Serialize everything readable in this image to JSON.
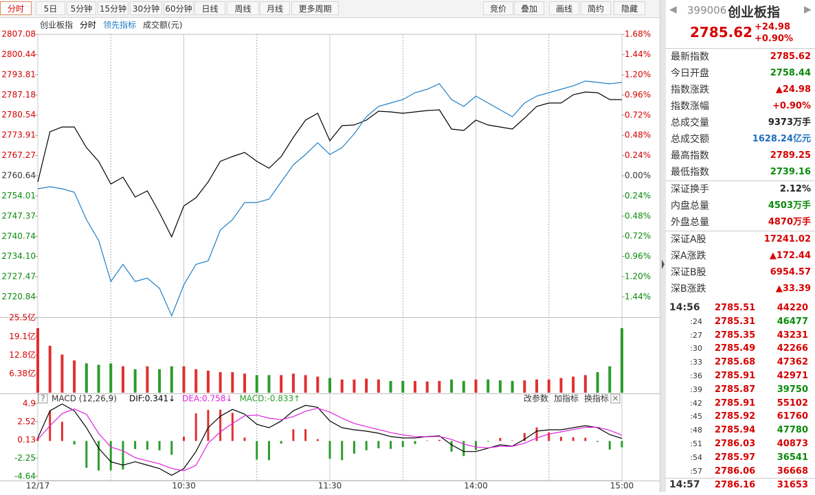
{
  "toolbar": {
    "periods": [
      "分时",
      "5日",
      "5分钟",
      "15分钟",
      "30分钟",
      "60分钟",
      "日线",
      "周线",
      "月线",
      "更多周期"
    ],
    "tools": [
      "竞价",
      "叠加",
      "画线",
      "简约",
      "隐藏"
    ]
  },
  "chart_data": [
    {
      "type": "line",
      "title": "创业板指",
      "x": [
        0,
        5,
        10,
        15,
        20,
        25,
        30,
        35,
        40,
        45,
        50,
        55,
        60,
        65,
        70,
        75,
        80,
        85,
        90,
        95,
        100,
        105,
        110,
        115,
        120,
        125,
        130,
        135,
        140,
        145,
        150,
        155,
        160,
        165,
        170,
        175,
        180,
        185,
        190,
        195,
        200,
        205,
        210,
        215,
        220,
        225,
        230,
        235,
        240
      ],
      "xlim": [
        0,
        240
      ],
      "xticks": [
        {
          "value": 0,
          "label": "12/17"
        },
        {
          "value": 60,
          "label": "10:30"
        },
        {
          "value": 120,
          "label": "11:30"
        },
        {
          "value": 180,
          "label": "14:00"
        },
        {
          "value": 240,
          "label": "15:00"
        }
      ],
      "ylim": [
        2714.2,
        2807.08
      ],
      "yticks": [
        2807.08,
        2800.44,
        2793.81,
        2787.18,
        2780.54,
        2773.91,
        2767.27,
        2760.64,
        2754.01,
        2747.37,
        2740.74,
        {
          "value": 2734.1,
          "label": "2734.10"
        },
        2727.47,
        2720.84
      ],
      "y2lim": [
        -1.682,
        1.682
      ],
      "y2ticks": [
        {
          "value": 1.68,
          "label": "1.68%"
        },
        {
          "value": 1.44,
          "label": "1.44%"
        },
        {
          "value": 1.2,
          "label": "1.20%"
        },
        {
          "value": 0.96,
          "label": "0.96%"
        },
        {
          "value": 0.72,
          "label": "0.72%"
        },
        {
          "value": 0.48,
          "label": "0.48%"
        },
        {
          "value": 0.24,
          "label": "0.24%"
        },
        {
          "value": 0,
          "label": "0.00%"
        },
        {
          "value": -0.24,
          "label": "0.24%"
        },
        {
          "value": -0.48,
          "label": "0.48%"
        },
        {
          "value": -0.72,
          "label": "0.72%"
        },
        {
          "value": -0.96,
          "label": "0.96%"
        },
        {
          "value": -1.2,
          "label": "1.20%"
        },
        {
          "value": -1.44,
          "label": "1.44%"
        }
      ],
      "grid": true,
      "series": [
        {
          "name": "分时",
          "color": "#000000",
          "values": [
            2758.61,
            2775.07,
            2776.65,
            2776.65,
            2769.88,
            2765.37,
            2757.93,
            2760.19,
            2753.65,
            2755.68,
            2748.47,
            2740.58,
            2750.72,
            2753.43,
            2758.61,
            2765.37,
            2766.95,
            2768.3,
            2765.37,
            2763.12,
            2766.95,
            2773.26,
            2778.9,
            2781.15,
            2772.14,
            2777.1,
            2777.32,
            2778.9,
            2781.83,
            2781.61,
            2781.15,
            2781.61,
            2782.06,
            2782.28,
            2775.97,
            2775.52,
            2778.9,
            2777.32,
            2776.65,
            2775.97,
            2779.58,
            2783.41,
            2784.54,
            2784.54,
            2787.24,
            2788.14,
            2787.92,
            2785.66,
            2785.62
          ]
        },
        {
          "name": "领先指标",
          "color": "#1e7fc6",
          "values": [
            2756.36,
            2757.03,
            2756.36,
            2755.23,
            2746.21,
            2739.45,
            2725.92,
            2731.56,
            2725.92,
            2727.05,
            2723.67,
            2714.65,
            2724.79,
            2731.56,
            2732.68,
            2742.83,
            2746.21,
            2751.85,
            2751.85,
            2752.97,
            2758.61,
            2764.25,
            2767.63,
            2771.46,
            2767.63,
            2769.88,
            2774.39,
            2780.03,
            2783.41,
            2784.54,
            2785.66,
            2787.92,
            2789.04,
            2790.85,
            2785.66,
            2783.41,
            2786.79,
            2784.54,
            2782.28,
            2780.03,
            2784.54,
            2786.79,
            2787.92,
            2789.04,
            2790.17,
            2791.75,
            2791.3,
            2790.85,
            2791.3
          ]
        }
      ]
    },
    {
      "type": "bar",
      "title": "成交额(元)",
      "x": [
        0,
        5,
        10,
        15,
        20,
        25,
        30,
        35,
        40,
        45,
        50,
        55,
        60,
        65,
        70,
        75,
        80,
        85,
        90,
        95,
        100,
        105,
        110,
        115,
        120,
        125,
        130,
        135,
        140,
        145,
        150,
        155,
        160,
        165,
        170,
        175,
        180,
        185,
        190,
        195,
        200,
        205,
        210,
        215,
        220,
        225,
        230,
        235,
        240
      ],
      "xlim": [
        0,
        240
      ],
      "ylim": [
        0,
        25.5
      ],
      "yticks": [
        {
          "value": 25.5,
          "label": "25.5亿"
        },
        {
          "value": 19.1,
          "label": "19.1亿"
        },
        {
          "value": 12.8,
          "label": "12.8亿"
        },
        {
          "value": 6.38,
          "label": "6.38亿"
        }
      ],
      "values": [
        22,
        16,
        13,
        11,
        10,
        9.5,
        10,
        9,
        8,
        9,
        8,
        9,
        9,
        8,
        7.5,
        7,
        7,
        6.5,
        6,
        6,
        6,
        6.5,
        6,
        5.5,
        5,
        4.5,
        4.5,
        4.8,
        4.5,
        4,
        4,
        4,
        3.8,
        4,
        4.5,
        4,
        4.5,
        4.5,
        4.2,
        4,
        4.2,
        4.5,
        4.5,
        5,
        5.5,
        6,
        7,
        9,
        22
      ],
      "colors": [
        "#e03030",
        "#e03030",
        "#e03030",
        "#e03030",
        "#2a9d2a",
        "#2a9d2a",
        "#2a9d2a",
        "#e03030",
        "#2a9d2a",
        "#e03030",
        "#2a9d2a",
        "#2a9d2a",
        "#e03030",
        "#e03030",
        "#e03030",
        "#e03030",
        "#e03030",
        "#e03030",
        "#2a9d2a",
        "#2a9d2a",
        "#e03030",
        "#e03030",
        "#e03030",
        "#e03030",
        "#2a9d2a",
        "#e03030",
        "#e03030",
        "#e03030",
        "#e03030",
        "#2a9d2a",
        "#2a9d2a",
        "#e03030",
        "#e03030",
        "#e03030",
        "#2a9d2a",
        "#2a9d2a",
        "#e03030",
        "#2a9d2a",
        "#2a9d2a",
        "#2a9d2a",
        "#e03030",
        "#e03030",
        "#e03030",
        "#e03030",
        "#e03030",
        "#e03030",
        "#2a9d2a",
        "#2a9d2a",
        "#2a9d2a"
      ]
    },
    {
      "type": "combo",
      "title": "MACD (12,26,9)",
      "x": [
        0,
        5,
        10,
        15,
        20,
        25,
        30,
        35,
        40,
        45,
        50,
        55,
        60,
        65,
        70,
        75,
        80,
        85,
        90,
        95,
        100,
        105,
        110,
        115,
        120,
        125,
        130,
        135,
        140,
        145,
        150,
        155,
        160,
        165,
        170,
        175,
        180,
        185,
        190,
        195,
        200,
        205,
        210,
        215,
        220,
        225,
        230,
        235,
        240
      ],
      "xlim": [
        0,
        240
      ],
      "ylim": [
        -5.2,
        5.8
      ],
      "yticks": [
        4.9,
        2.52,
        0.13,
        -2.25,
        -4.64
      ],
      "buttons": [
        "改参数",
        "加指标",
        "换指标"
      ],
      "series": [
        {
          "name": "DIF:0.341↓",
          "kind": "line",
          "color": "#000000",
          "values": [
            0.4,
            3.97,
            4.86,
            3.97,
            1.74,
            -0.94,
            -2.73,
            -3.17,
            -2.73,
            -3.17,
            -3.62,
            -4.51,
            -3.62,
            -1.39,
            1.74,
            3.26,
            4.15,
            3.52,
            2.18,
            1.74,
            2.63,
            3.97,
            4.68,
            4.42,
            2.63,
            1.74,
            1.47,
            1.29,
            1.02,
            0.58,
            0.4,
            0.4,
            0.58,
            0.67,
            -0.5,
            -1.39,
            -1.39,
            -0.94,
            -0.5,
            -0.67,
            0.22,
            1.29,
            1.47,
            1.47,
            1.74,
            2.01,
            1.74,
            0.84,
            0.341
          ]
        },
        {
          "name": "DEA:0.758↓",
          "kind": "line",
          "color": "#e020e0",
          "values": [
            0.2,
            2.0,
            3.6,
            4.2,
            3.5,
            1.0,
            -0.8,
            -1.3,
            -2.2,
            -2.6,
            -3.0,
            -3.6,
            -3.9,
            -3.2,
            -0.3,
            1.2,
            2.3,
            3.3,
            3.4,
            3.0,
            2.8,
            3.2,
            3.9,
            4.3,
            3.8,
            3.0,
            2.3,
            1.9,
            1.5,
            1.1,
            0.8,
            0.6,
            0.55,
            0.6,
            0.2,
            -0.4,
            -0.8,
            -0.9,
            -0.7,
            -0.7,
            -0.3,
            0.4,
            0.9,
            1.2,
            1.5,
            1.8,
            1.8,
            1.4,
            0.758
          ]
        },
        {
          "name": "MACD:-0.833↑",
          "kind": "bar",
          "color": "#2a9d2a",
          "values": [
            0.4,
            3.94,
            2.52,
            -0.46,
            -3.52,
            -3.88,
            -3.86,
            -3.74,
            -1.06,
            -1.14,
            -1.24,
            -1.82,
            0.56,
            3.62,
            4.08,
            4.12,
            3.7,
            0.44,
            -2.44,
            -2.52,
            -0.34,
            1.54,
            1.56,
            0.24,
            -2.34,
            -2.52,
            -1.66,
            -1.22,
            -0.96,
            -1.04,
            -0.8,
            -0.4,
            0.06,
            0.14,
            -1.4,
            -1.98,
            -1.18,
            -0.08,
            0.4,
            0.06,
            1.04,
            1.78,
            1.14,
            0.54,
            0.48,
            0.42,
            -0.12,
            -1.12,
            -0.833
          ]
        }
      ]
    }
  ],
  "quote": {
    "code": "399006",
    "name": "创业板指",
    "price": "2785.62",
    "change": "+24.98",
    "pct": "+0.90%"
  },
  "stats": [
    [
      {
        "label": "最新指数",
        "value": "2785.62",
        "color": "#d60000"
      },
      {
        "label": "今日开盘",
        "value": "2758.44",
        "color": "#0a8a0a"
      },
      {
        "label": "指数涨跌",
        "value": "▲24.98",
        "color": "#d60000"
      },
      {
        "label": "指数涨幅",
        "value": "+0.90%",
        "color": "#d60000"
      },
      {
        "label": "总成交量",
        "value": "9373万手",
        "color": "#222222"
      },
      {
        "label": "总成交额",
        "value": "1628.24亿元",
        "color": "#1e6fc0"
      },
      {
        "label": "最高指数",
        "value": "2789.25",
        "color": "#d60000"
      },
      {
        "label": "最低指数",
        "value": "2739.16",
        "color": "#0a8a0a"
      }
    ],
    [
      {
        "label": "深证换手",
        "value": "2.12%",
        "color": "#222222"
      },
      {
        "label": "内盘总量",
        "value": "4503万手",
        "color": "#0a8a0a"
      },
      {
        "label": "外盘总量",
        "value": "4870万手",
        "color": "#d60000"
      }
    ],
    [
      {
        "label": "深证A股",
        "value": "17241.02",
        "color": "#d60000"
      },
      {
        "label": "深A涨跌",
        "value": "▲172.44",
        "color": "#d60000"
      },
      {
        "label": "深证B股",
        "value": "6954.57",
        "color": "#d60000"
      },
      {
        "label": "深B涨跌",
        "value": "▲33.39",
        "color": "#d60000"
      }
    ]
  ],
  "ticks": [
    [
      {
        "time": "14:56",
        "price": "2785.51",
        "volume": "44220",
        "color": "#d60000"
      },
      {
        "time": ":24",
        "price": "2785.31",
        "volume": "46477",
        "color": "#0a8a0a"
      },
      {
        "time": ":27",
        "price": "2785.35",
        "volume": "43231",
        "color": "#d60000"
      },
      {
        "time": ":30",
        "price": "2785.49",
        "volume": "42266",
        "color": "#d60000"
      },
      {
        "time": ":33",
        "price": "2785.68",
        "volume": "47362",
        "color": "#d60000"
      },
      {
        "time": ":36",
        "price": "2785.91",
        "volume": "42971",
        "color": "#d60000"
      },
      {
        "time": ":39",
        "price": "2785.87",
        "volume": "39750",
        "color": "#0a8a0a"
      },
      {
        "time": ":42",
        "price": "2785.91",
        "volume": "55102",
        "color": "#d60000"
      },
      {
        "time": ":45",
        "price": "2785.92",
        "volume": "61760",
        "color": "#d60000"
      },
      {
        "time": ":48",
        "price": "2785.94",
        "volume": "47780",
        "color": "#0a8a0a"
      },
      {
        "time": ":51",
        "price": "2786.03",
        "volume": "40873",
        "color": "#d60000"
      },
      {
        "time": ":54",
        "price": "2785.97",
        "volume": "36541",
        "color": "#0a8a0a"
      },
      {
        "time": ":57",
        "price": "2786.06",
        "volume": "36668",
        "color": "#d60000"
      }
    ],
    [
      {
        "time": "14:57",
        "price": "2786.16",
        "volume": "31653",
        "color": "#d60000"
      }
    ]
  ]
}
